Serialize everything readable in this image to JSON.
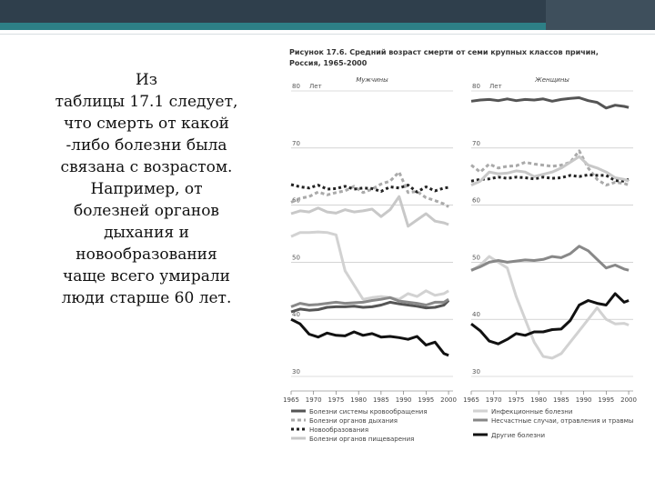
{
  "slide": {
    "lines": [
      "Из",
      "таблицы 17.1 следует,",
      "что смерть от какой",
      "-либо болезни была",
      "связана с возрастом.",
      "Например, от",
      "болезней органов",
      "дыхания и",
      "новообразования",
      "чаще всего умирали",
      "люди старше 60 лет."
    ]
  },
  "figure": {
    "title_line1": "Рисунок 17.6. Средний возраст смерти от семи крупных классов причин,",
    "title_line2": "Россия, 1965-2000"
  },
  "chart_data": [
    {
      "type": "line",
      "panel_title": "Мужчины",
      "ylabel": "Лет",
      "ylim": [
        30,
        80
      ],
      "yticks": [
        30,
        40,
        50,
        60,
        70,
        80
      ],
      "xlim": [
        1965,
        2001
      ],
      "xticks": [
        "1965",
        "1970",
        "1975",
        "1980",
        "1985",
        "1990",
        "1995",
        "2000"
      ],
      "series": [
        {
          "name": "Болезни системы кровообращения",
          "color": "#555555",
          "dash": "none",
          "width": 3,
          "x": [
            1965,
            1967,
            1969,
            1971,
            1973,
            1975,
            1977,
            1979,
            1981,
            1983,
            1985,
            1987,
            1989,
            1991,
            1993,
            1995,
            1997,
            1999,
            2000
          ],
          "y": [
            41.3,
            41.8,
            41.6,
            41.7,
            42.1,
            42.2,
            42.2,
            42.3,
            42.1,
            42.2,
            42.5,
            43.0,
            42.7,
            42.5,
            42.3,
            42.0,
            42.1,
            42.5,
            43.3
          ]
        },
        {
          "name": "Болезни органов дыхания",
          "color": "#aaaaaa",
          "dash": "4,3",
          "width": 3,
          "x": [
            1965,
            1967,
            1969,
            1971,
            1973,
            1975,
            1977,
            1979,
            1981,
            1983,
            1985,
            1987,
            1989,
            1991,
            1993,
            1995,
            1997,
            1999,
            2000
          ],
          "y": [
            60.5,
            61.2,
            61.5,
            62.3,
            61.8,
            62.2,
            62.5,
            63.3,
            62.2,
            62.8,
            63.7,
            64.2,
            65.8,
            62.2,
            62.4,
            61.3,
            60.8,
            60.2,
            59.7
          ]
        },
        {
          "name": "Новообразования",
          "color": "#222222",
          "dash": "3,3",
          "width": 3,
          "x": [
            1965,
            1967,
            1969,
            1971,
            1973,
            1975,
            1977,
            1979,
            1981,
            1983,
            1985,
            1987,
            1989,
            1991,
            1993,
            1995,
            1997,
            1999,
            2000
          ],
          "y": [
            63.6,
            63.2,
            63.0,
            63.5,
            62.8,
            62.9,
            63.3,
            62.8,
            63.0,
            62.9,
            62.4,
            63.2,
            63.0,
            63.5,
            62.3,
            63.2,
            62.5,
            63.0,
            63.1
          ]
        },
        {
          "name": "Болезни органов пищеварения",
          "color": "#c8c8c8",
          "dash": "none",
          "width": 3,
          "x": [
            1965,
            1967,
            1969,
            1971,
            1973,
            1975,
            1977,
            1979,
            1981,
            1983,
            1985,
            1987,
            1989,
            1991,
            1993,
            1995,
            1997,
            1999,
            2000
          ],
          "y": [
            58.5,
            59.0,
            58.8,
            59.5,
            58.8,
            58.6,
            59.2,
            58.8,
            59.0,
            59.3,
            58.0,
            59.2,
            61.5,
            56.3,
            57.4,
            58.5,
            57.2,
            56.9,
            56.6
          ]
        },
        {
          "name": "Инфекционные болезни",
          "color": "#d2d2d2",
          "dash": "none",
          "width": 3,
          "x": [
            1965,
            1967,
            1969,
            1971,
            1973,
            1975,
            1977,
            1979,
            1981,
            1983,
            1985,
            1987,
            1989,
            1991,
            1993,
            1995,
            1997,
            1999,
            2000
          ],
          "y": [
            54.5,
            55.2,
            55.2,
            55.3,
            55.2,
            54.8,
            48.5,
            46.0,
            43.5,
            43.8,
            44.0,
            43.8,
            43.5,
            44.5,
            44.0,
            45.0,
            44.2,
            44.5,
            45.0
          ]
        },
        {
          "name": "Несчастные случаи, отравления и травмы",
          "color": "#888888",
          "dash": "none",
          "width": 3,
          "x": [
            1965,
            1967,
            1969,
            1971,
            1973,
            1975,
            1977,
            1979,
            1981,
            1983,
            1985,
            1987,
            1989,
            1991,
            1993,
            1995,
            1997,
            1999,
            2000
          ],
          "y": [
            42.2,
            42.8,
            42.5,
            42.6,
            42.8,
            43.0,
            42.8,
            42.9,
            43.0,
            43.3,
            43.5,
            43.8,
            43.2,
            43.0,
            42.8,
            42.5,
            43.0,
            43.0,
            43.5
          ]
        },
        {
          "name": "Другие болезни",
          "color": "#111111",
          "dash": "none",
          "width": 3,
          "x": [
            1965,
            1967,
            1969,
            1971,
            1973,
            1975,
            1977,
            1979,
            1981,
            1983,
            1985,
            1987,
            1989,
            1991,
            1993,
            1995,
            1997,
            1999,
            2000
          ],
          "y": [
            40.0,
            39.2,
            37.4,
            36.9,
            37.6,
            37.2,
            37.1,
            37.8,
            37.2,
            37.5,
            36.9,
            37.0,
            36.8,
            36.5,
            37.0,
            35.5,
            36.0,
            34.0,
            33.7
          ]
        }
      ]
    },
    {
      "type": "line",
      "panel_title": "Женщины",
      "ylabel": "Лет",
      "ylim": [
        30,
        80
      ],
      "yticks": [
        30,
        40,
        50,
        60,
        70,
        80
      ],
      "xlim": [
        1965,
        2001
      ],
      "xticks": [
        "1965",
        "1970",
        "1975",
        "1980",
        "1985",
        "1990",
        "1995",
        "2000"
      ],
      "series": [
        {
          "name": "Болезни системы кровообращения",
          "color": "#555555",
          "dash": "none",
          "width": 3,
          "x": [
            1965,
            1967,
            1969,
            1971,
            1973,
            1975,
            1977,
            1979,
            1981,
            1983,
            1985,
            1987,
            1989,
            1991,
            1993,
            1995,
            1997,
            1999,
            2000
          ],
          "y": [
            78.2,
            78.4,
            78.5,
            78.3,
            78.6,
            78.3,
            78.5,
            78.4,
            78.6,
            78.2,
            78.5,
            78.7,
            78.8,
            78.3,
            78.0,
            77.0,
            77.5,
            77.3,
            77.1
          ]
        },
        {
          "name": "Болезни органов дыхания",
          "color": "#aaaaaa",
          "dash": "4,3",
          "width": 3,
          "x": [
            1965,
            1967,
            1969,
            1971,
            1973,
            1975,
            1977,
            1979,
            1981,
            1983,
            1985,
            1987,
            1989,
            1991,
            1993,
            1995,
            1997,
            1999,
            2000
          ],
          "y": [
            67.0,
            65.8,
            67.2,
            66.5,
            66.8,
            66.9,
            67.5,
            67.2,
            67.0,
            66.8,
            67.0,
            67.5,
            69.5,
            66.5,
            64.5,
            63.5,
            64.0,
            63.8,
            63.5
          ]
        },
        {
          "name": "Новообразования",
          "color": "#222222",
          "dash": "3,3",
          "width": 3,
          "x": [
            1965,
            1967,
            1969,
            1971,
            1973,
            1975,
            1977,
            1979,
            1981,
            1983,
            1985,
            1987,
            1989,
            1991,
            1993,
            1995,
            1997,
            1999,
            2000
          ],
          "y": [
            64.2,
            64.5,
            64.6,
            64.9,
            64.7,
            64.9,
            64.8,
            64.6,
            64.9,
            64.7,
            64.8,
            65.2,
            65.0,
            65.3,
            65.2,
            65.2,
            64.3,
            64.2,
            64.5
          ]
        },
        {
          "name": "Болезни органов пищеварения",
          "color": "#c8c8c8",
          "dash": "none",
          "width": 3,
          "x": [
            1965,
            1967,
            1969,
            1971,
            1973,
            1975,
            1977,
            1979,
            1981,
            1983,
            1985,
            1987,
            1989,
            1991,
            1993,
            1995,
            1997,
            1999,
            2000
          ],
          "y": [
            63.5,
            64.2,
            65.8,
            65.5,
            65.6,
            66.0,
            65.8,
            65.0,
            65.4,
            65.8,
            66.5,
            67.5,
            68.5,
            67.0,
            66.5,
            65.8,
            64.8,
            64.5,
            64.2
          ]
        },
        {
          "name": "Инфекционные болезни",
          "color": "#d2d2d2",
          "dash": "none",
          "width": 3,
          "x": [
            1965,
            1967,
            1969,
            1971,
            1973,
            1975,
            1977,
            1979,
            1981,
            1983,
            1985,
            1987,
            1989,
            1991,
            1993,
            1995,
            1997,
            1999,
            2000
          ],
          "y": [
            48.5,
            49.5,
            51.0,
            50.0,
            49.0,
            44.0,
            40.0,
            36.0,
            33.5,
            33.2,
            34.0,
            36.0,
            38.0,
            40.0,
            42.0,
            40.0,
            39.2,
            39.3,
            39.0
          ]
        },
        {
          "name": "Несчастные случаи, отравления и травмы",
          "color": "#888888",
          "dash": "none",
          "width": 3,
          "x": [
            1965,
            1967,
            1969,
            1971,
            1973,
            1975,
            1977,
            1979,
            1981,
            1983,
            1985,
            1987,
            1989,
            1991,
            1993,
            1995,
            1997,
            1999,
            2000
          ],
          "y": [
            48.6,
            49.2,
            50.0,
            50.3,
            50.0,
            50.2,
            50.4,
            50.3,
            50.5,
            51.0,
            50.8,
            51.5,
            52.8,
            52.0,
            50.5,
            49.0,
            49.5,
            48.8,
            48.6
          ]
        },
        {
          "name": "Другие болезни",
          "color": "#111111",
          "dash": "none",
          "width": 3,
          "x": [
            1965,
            1967,
            1969,
            1971,
            1973,
            1975,
            1977,
            1979,
            1981,
            1983,
            1985,
            1987,
            1989,
            1991,
            1993,
            1995,
            1997,
            1999,
            2000
          ],
          "y": [
            39.2,
            38.0,
            36.2,
            35.7,
            36.5,
            37.5,
            37.2,
            37.8,
            37.8,
            38.2,
            38.3,
            39.8,
            42.5,
            43.3,
            42.8,
            42.5,
            44.5,
            43.0,
            43.3
          ]
        }
      ]
    }
  ]
}
